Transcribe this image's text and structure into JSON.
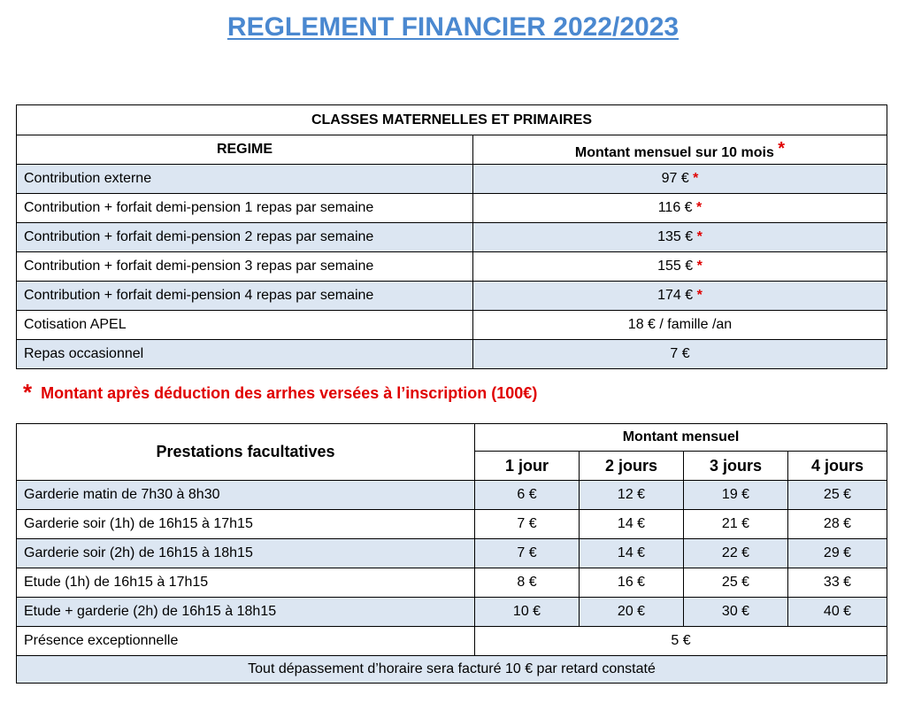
{
  "title": "REGLEMENT FINANCIER 2022/2023",
  "table1": {
    "heading": "CLASSES MATERNELLES ET PRIMAIRES",
    "col_regime": "REGIME",
    "col_amount": "Montant mensuel sur 10 mois",
    "star": "*",
    "rows": [
      {
        "label": "Contribution externe",
        "value": "97 €",
        "star": "*"
      },
      {
        "label": "Contribution + forfait demi-pension  1 repas par semaine",
        "value": "116 €",
        "star": "*"
      },
      {
        "label": "Contribution + forfait demi-pension  2 repas par semaine",
        "value": "135 €",
        "star": "*"
      },
      {
        "label": "Contribution + forfait demi-pension  3 repas par semaine",
        "value": "155 €",
        "star": "*"
      },
      {
        "label": "Contribution + forfait demi-pension 4 repas par semaine",
        "value": "174 €",
        "star": "*"
      },
      {
        "label": "Cotisation APEL",
        "value": "18 € / famille /an",
        "star": ""
      },
      {
        "label": "Repas occasionnel",
        "value": "7 €",
        "star": ""
      }
    ]
  },
  "note": {
    "star": "*",
    "text": "Montant après déduction des arrhes versées à l’inscription (100€)"
  },
  "table2": {
    "col_prestations": "Prestations facultatives",
    "col_amount": "Montant mensuel",
    "days": [
      "1 jour",
      "2 jours",
      "3 jours",
      "4 jours"
    ],
    "rows": [
      {
        "label": "Garderie matin de 7h30 à 8h30",
        "values": [
          "6 €",
          "12 €",
          "19 €",
          "25 €"
        ]
      },
      {
        "label": "Garderie soir (1h)   de 16h15 à 17h15",
        "values": [
          "7 €",
          "14 €",
          "21 €",
          "28 €"
        ]
      },
      {
        "label": "Garderie soir (2h) de 16h15 à 18h15",
        "values": [
          "7 €",
          "14 €",
          "22 €",
          "29 €"
        ]
      },
      {
        "label": "Etude (1h) de 16h15 à 17h15",
        "values": [
          "8 €",
          "16 €",
          "25 €",
          "33 €"
        ]
      },
      {
        "label": "Etude + garderie (2h) de 16h15 à 18h15",
        "values": [
          "10 €",
          "20 €",
          "30 €",
          "40 €"
        ]
      }
    ],
    "exceptional": {
      "label": "Présence exceptionnelle",
      "value": "5 €"
    },
    "footer": "Tout dépassement d’horaire sera facturé 10 € par retard constaté"
  },
  "colors": {
    "title": "#4a88d0",
    "shade": "#dce6f2",
    "accent_red": "#e00000"
  }
}
